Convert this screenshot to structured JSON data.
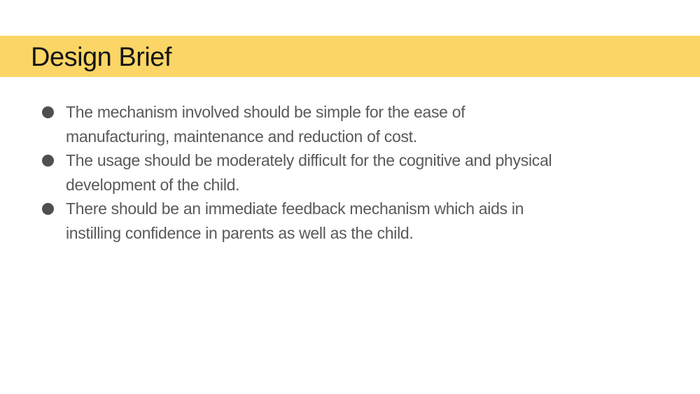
{
  "slide": {
    "colors": {
      "background": "#ffffff",
      "title_bar": "#fbd666",
      "title_text": "#151515",
      "body_text": "#595959",
      "bullet_marker": "#4f4f4f"
    },
    "title": "Design Brief",
    "bullets": [
      {
        "text": "The mechanism involved should be simple for the ease of\nmanufacturing, maintenance and reduction of cost."
      },
      {
        "text": "The usage should be moderately difficult for the cognitive and physical\ndevelopment of the child."
      },
      {
        "text": "There should be an immediate feedback mechanism which aids in\ninstilling confidence in parents as well as the child."
      }
    ]
  }
}
